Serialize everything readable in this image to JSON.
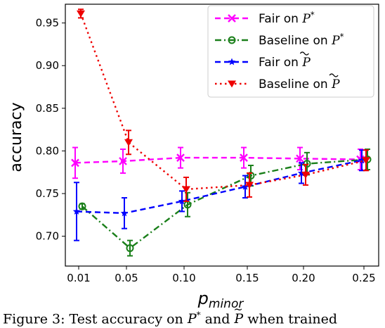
{
  "chart_data": {
    "type": "line",
    "title": "",
    "xlabel": "p_minor",
    "ylabel": "accuracy",
    "x": [
      0.01,
      0.05,
      0.1,
      0.15,
      0.2,
      0.25
    ],
    "x_tick_labels": [
      "0.01",
      "0.05",
      "0.10",
      "0.15",
      "0.20",
      "0.25"
    ],
    "y_ticks": [
      0.7,
      0.75,
      0.8,
      0.85,
      0.9,
      0.95
    ],
    "y_tick_labels": [
      "0.70",
      "0.75",
      "0.80",
      "0.85",
      "0.90",
      "0.95"
    ],
    "ylim": [
      0.665,
      0.972
    ],
    "grid": false,
    "legend_position": "top-right",
    "series": [
      {
        "name": "Fair on P*",
        "label_text": "Fair on ",
        "label_math": "P*",
        "color": "#ff00ff",
        "linestyle": "dashed",
        "marker": "x",
        "points": [
          {
            "x": 0.01,
            "y": 0.786,
            "err": 0.018
          },
          {
            "x": 0.05,
            "y": 0.788,
            "err": 0.014
          },
          {
            "x": 0.1,
            "y": 0.792,
            "err": 0.012
          },
          {
            "x": 0.15,
            "y": 0.792,
            "err": 0.012
          },
          {
            "x": 0.2,
            "y": 0.791,
            "err": 0.013
          },
          {
            "x": 0.25,
            "y": 0.79,
            "err": 0.012
          }
        ]
      },
      {
        "name": "Baseline on P*",
        "label_text": "Baseline on ",
        "label_math": "P*",
        "color": "#1a7f1a",
        "linestyle": "dashdot",
        "marker": "o",
        "points": [
          {
            "x": 0.01,
            "y": 0.735,
            "err": 0.003
          },
          {
            "x": 0.05,
            "y": 0.686,
            "err": 0.009
          },
          {
            "x": 0.1,
            "y": 0.737,
            "err": 0.014
          },
          {
            "x": 0.15,
            "y": 0.771,
            "err": 0.012
          },
          {
            "x": 0.2,
            "y": 0.785,
            "err": 0.013
          },
          {
            "x": 0.25,
            "y": 0.79,
            "err": 0.012
          }
        ]
      },
      {
        "name": "Fair on P~",
        "label_text": "Fair on ",
        "label_math": "P~",
        "color": "#0000ff",
        "linestyle": "dashed",
        "marker": "star",
        "points": [
          {
            "x": 0.01,
            "y": 0.729,
            "err": 0.034
          },
          {
            "x": 0.05,
            "y": 0.727,
            "err": 0.018
          },
          {
            "x": 0.1,
            "y": 0.741,
            "err": 0.012
          },
          {
            "x": 0.15,
            "y": 0.758,
            "err": 0.013
          },
          {
            "x": 0.2,
            "y": 0.774,
            "err": 0.012
          },
          {
            "x": 0.25,
            "y": 0.789,
            "err": 0.012
          }
        ]
      },
      {
        "name": "Baseline on P~",
        "label_text": "Baseline on ",
        "label_math": "P~",
        "color": "#ee0000",
        "linestyle": "dotted",
        "marker": "triangle-down",
        "points": [
          {
            "x": 0.01,
            "y": 0.961,
            "err": 0.005
          },
          {
            "x": 0.05,
            "y": 0.81,
            "err": 0.014
          },
          {
            "x": 0.1,
            "y": 0.755,
            "err": 0.014
          },
          {
            "x": 0.15,
            "y": 0.76,
            "err": 0.014
          },
          {
            "x": 0.2,
            "y": 0.772,
            "err": 0.012
          },
          {
            "x": 0.25,
            "y": 0.789,
            "err": 0.012
          }
        ]
      }
    ]
  },
  "caption": {
    "text": "Figure 3: Test accuracy on P* and P~ when trained"
  }
}
